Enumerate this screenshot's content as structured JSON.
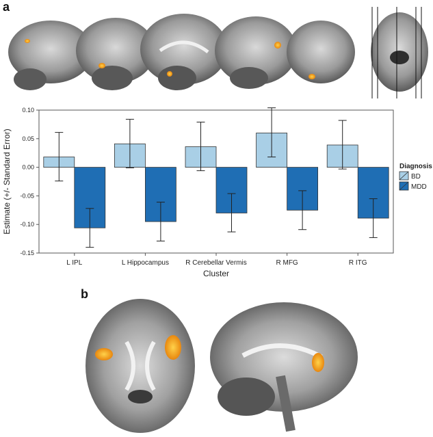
{
  "panels": {
    "a_label": "a",
    "b_label": "b"
  },
  "chart_data": {
    "type": "bar",
    "categories": [
      "L IPL",
      "L Hippocampus",
      "R Cerebellar Vermis",
      "R MFG",
      "R ITG"
    ],
    "series": [
      {
        "name": "BD",
        "color": "#a9cfe6",
        "values": [
          0.018,
          0.041,
          0.036,
          0.06,
          0.039
        ],
        "err_low": [
          -0.024,
          -0.001,
          -0.006,
          0.018,
          -0.003
        ],
        "err_high": [
          0.061,
          0.084,
          0.079,
          0.104,
          0.082
        ]
      },
      {
        "name": "MDD",
        "color": "#1f6eb4",
        "values": [
          -0.106,
          -0.095,
          -0.08,
          -0.075,
          -0.089
        ],
        "err_low": [
          -0.14,
          -0.129,
          -0.113,
          -0.109,
          -0.123
        ],
        "err_high": [
          -0.072,
          -0.061,
          -0.046,
          -0.041,
          -0.055
        ]
      }
    ],
    "xlabel": "Cluster",
    "ylabel": "Estimate (+/- Standard Error)",
    "ylim": [
      -0.15,
      0.1
    ],
    "yticks": [
      "0.10",
      "0.05",
      "0.00",
      "-0.05",
      "-0.10",
      "-0.15"
    ],
    "ytick_values": [
      0.1,
      0.05,
      0.0,
      -0.05,
      -0.1,
      -0.15
    ],
    "legend": {
      "title": "Diagnosis",
      "position": "right"
    }
  }
}
